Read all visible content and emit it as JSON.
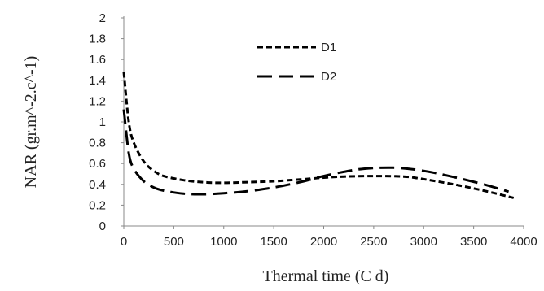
{
  "chart_data": {
    "type": "line",
    "title": "",
    "xlabel": "Thermal time (C d)",
    "ylabel": "NAR (gr.m^-2.c^-1)",
    "xlim": [
      0,
      4000
    ],
    "ylim": [
      0,
      2
    ],
    "xticks": [
      "0",
      "500",
      "1000",
      "1500",
      "2000",
      "2500",
      "3000",
      "3500",
      "4000"
    ],
    "yticks": [
      "0",
      "0.2",
      "0.4",
      "0.6",
      "0.8",
      "1",
      "1.2",
      "1.4",
      "1.6",
      "1.8",
      "2"
    ],
    "grid": false,
    "legend_position": "top-center",
    "series": [
      {
        "name": "D1",
        "style": "short-dash",
        "color": "#000000",
        "x": [
          0,
          50,
          100,
          200,
          300,
          400,
          600,
          800,
          1000,
          1200,
          1500,
          1800,
          2000,
          2200,
          2500,
          2800,
          3000,
          3300,
          3600,
          3900
        ],
        "y": [
          1.48,
          1.0,
          0.8,
          0.62,
          0.53,
          0.48,
          0.44,
          0.42,
          0.415,
          0.42,
          0.43,
          0.45,
          0.465,
          0.475,
          0.48,
          0.475,
          0.45,
          0.4,
          0.34,
          0.27
        ]
      },
      {
        "name": "D2",
        "style": "long-dash",
        "color": "#000000",
        "x": [
          0,
          50,
          100,
          200,
          300,
          400,
          600,
          800,
          1000,
          1200,
          1500,
          1800,
          2000,
          2200,
          2400,
          2700,
          3000,
          3300,
          3600,
          3850
        ],
        "y": [
          1.12,
          0.7,
          0.55,
          0.43,
          0.37,
          0.34,
          0.31,
          0.305,
          0.315,
          0.33,
          0.37,
          0.43,
          0.48,
          0.52,
          0.55,
          0.56,
          0.53,
          0.47,
          0.4,
          0.33
        ]
      }
    ]
  }
}
